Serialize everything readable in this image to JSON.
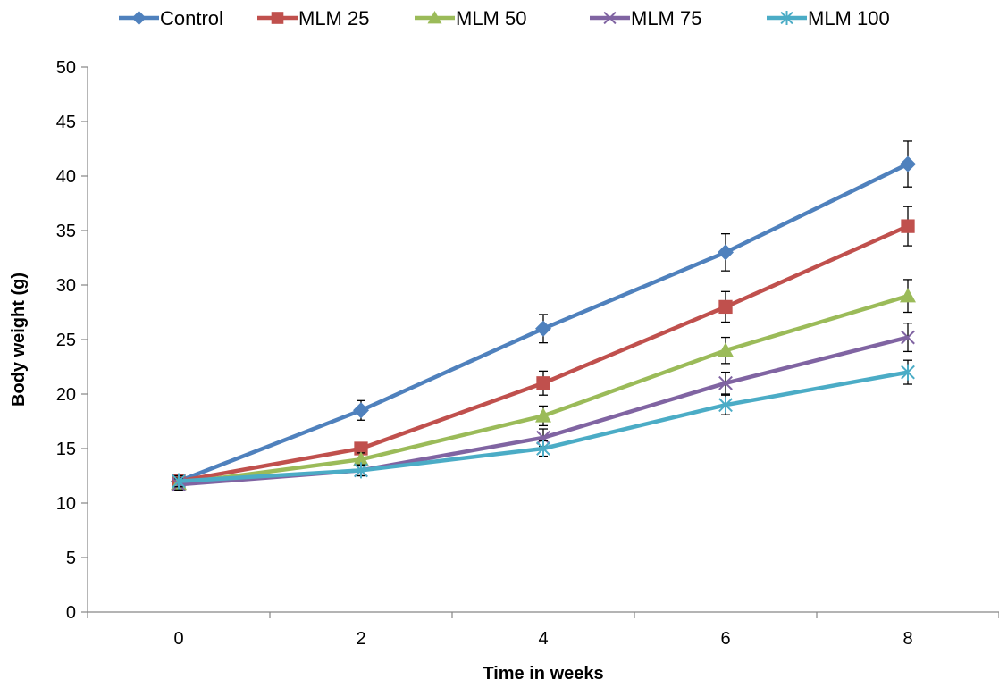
{
  "chart_data": {
    "type": "line",
    "title": "",
    "xlabel": "Time in weeks",
    "ylabel": "Body weight (g)",
    "x": [
      0,
      2,
      4,
      6,
      8
    ],
    "xticks": [
      "0",
      "2",
      "4",
      "6",
      "8"
    ],
    "xlim": [
      -1,
      9
    ],
    "ylim": [
      0,
      50
    ],
    "yticks": [
      "0",
      "5",
      "10",
      "15",
      "20",
      "25",
      "30",
      "35",
      "40",
      "45",
      "50"
    ],
    "grid": false,
    "legend_position": "top",
    "series": [
      {
        "name": "Control",
        "color": "#4F81BD",
        "marker": "diamond",
        "values": [
          12,
          18.5,
          26,
          33,
          41.1
        ],
        "errors": [
          0.5,
          0.9,
          1.3,
          1.7,
          2.1
        ]
      },
      {
        "name": "MLM 25",
        "color": "#C0504D",
        "marker": "square",
        "values": [
          12,
          15,
          21,
          28,
          35.4
        ],
        "errors": [
          0.5,
          0.5,
          1.1,
          1.4,
          1.8
        ]
      },
      {
        "name": "MLM 50",
        "color": "#9BBB59",
        "marker": "triangle",
        "values": [
          11.8,
          14,
          18,
          24,
          29
        ],
        "errors": [
          0.5,
          0.6,
          0.9,
          1.2,
          1.5
        ]
      },
      {
        "name": "MLM 75",
        "color": "#8064A2",
        "marker": "x",
        "values": [
          11.7,
          13,
          16,
          21,
          25.2
        ],
        "errors": [
          0.5,
          0.5,
          0.8,
          1.0,
          1.3
        ]
      },
      {
        "name": "MLM 100",
        "color": "#4BACC6",
        "marker": "star",
        "values": [
          12,
          13,
          15,
          19,
          22
        ],
        "errors": [
          0.5,
          0.5,
          0.7,
          0.9,
          1.1
        ]
      }
    ]
  }
}
